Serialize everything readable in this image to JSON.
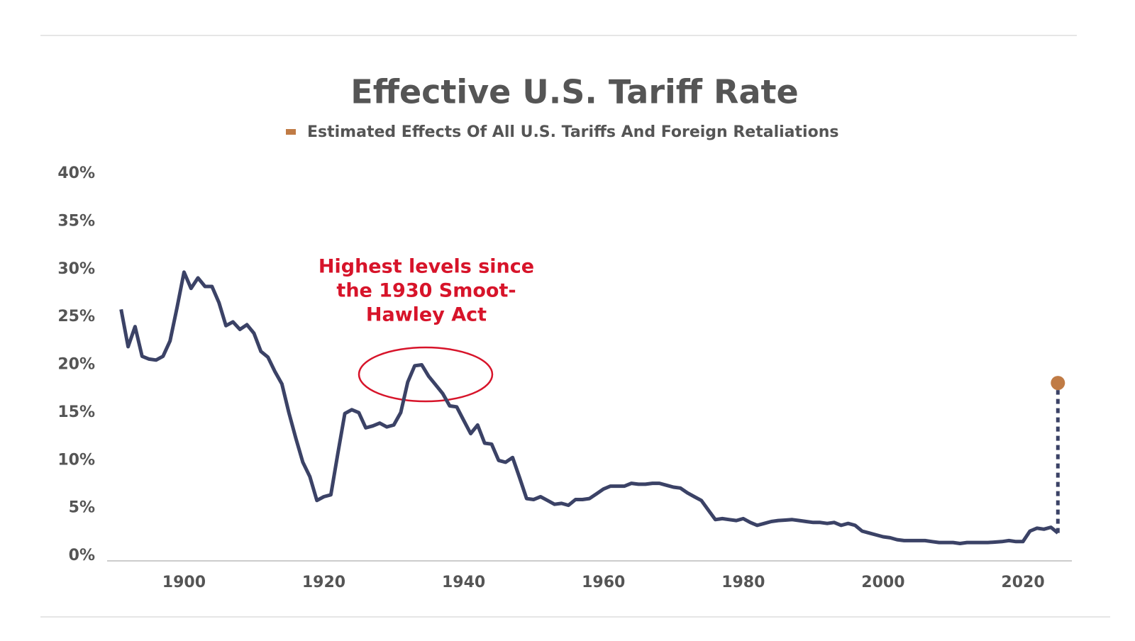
{
  "chart_data": {
    "type": "line",
    "title": "Effective U.S. Tariff Rate",
    "x": [
      1891,
      1892,
      1893,
      1894,
      1895,
      1896,
      1897,
      1898,
      1899,
      1900,
      1901,
      1902,
      1903,
      1904,
      1905,
      1906,
      1907,
      1908,
      1909,
      1910,
      1911,
      1912,
      1913,
      1914,
      1915,
      1916,
      1917,
      1918,
      1919,
      1920,
      1921,
      1922,
      1923,
      1924,
      1925,
      1926,
      1927,
      1928,
      1929,
      1930,
      1931,
      1932,
      1933,
      1934,
      1935,
      1936,
      1937,
      1938,
      1939,
      1940,
      1941,
      1942,
      1943,
      1944,
      1945,
      1946,
      1947,
      1948,
      1949,
      1950,
      1951,
      1952,
      1953,
      1954,
      1955,
      1956,
      1957,
      1958,
      1959,
      1960,
      1961,
      1962,
      1963,
      1964,
      1965,
      1966,
      1967,
      1968,
      1969,
      1970,
      1971,
      1972,
      1973,
      1974,
      1975,
      1976,
      1977,
      1978,
      1979,
      1980,
      1981,
      1982,
      1983,
      1984,
      1985,
      1986,
      1987,
      1988,
      1989,
      1990,
      1991,
      1992,
      1993,
      1994,
      1995,
      1996,
      1997,
      1998,
      1999,
      2000,
      2001,
      2002,
      2003,
      2004,
      2005,
      2006,
      2007,
      2008,
      2009,
      2010,
      2011,
      2012,
      2013,
      2014,
      2015,
      2016,
      2017,
      2018,
      2019,
      2020,
      2021,
      2022,
      2023,
      2024,
      2025
    ],
    "series": [
      {
        "color": "#3b4266",
        "values": [
          25.8,
          21.9,
          24.0,
          20.9,
          20.6,
          20.5,
          20.9,
          22.5,
          26.0,
          29.7,
          28.0,
          29.1,
          28.2,
          28.2,
          26.5,
          24.1,
          24.5,
          23.7,
          24.2,
          23.3,
          21.4,
          20.8,
          19.3,
          18.0,
          15.0,
          12.3,
          9.8,
          8.3,
          5.8,
          6.2,
          6.4,
          10.7,
          14.9,
          15.3,
          15.0,
          13.4,
          13.6,
          13.9,
          13.5,
          13.7,
          15.0,
          18.2,
          19.9,
          20.0,
          18.8,
          17.9,
          17.0,
          15.7,
          15.6,
          14.2,
          12.8,
          13.7,
          11.8,
          11.7,
          10.0,
          9.8,
          10.3,
          8.2,
          6.0,
          5.9,
          6.2,
          5.8,
          5.4,
          5.5,
          5.3,
          5.9,
          5.9,
          6.0,
          6.5,
          7.0,
          7.3,
          7.3,
          7.3,
          7.6,
          7.5,
          7.5,
          7.6,
          7.6,
          7.4,
          7.2,
          7.1,
          6.6,
          6.2,
          5.8,
          4.8,
          3.8,
          3.9,
          3.8,
          3.7,
          3.9,
          3.5,
          3.2,
          3.4,
          3.6,
          3.7,
          3.75,
          3.8,
          3.7,
          3.6,
          3.5,
          3.5,
          3.4,
          3.5,
          3.2,
          3.4,
          3.2,
          2.6,
          2.4,
          2.2,
          2.0,
          1.9,
          1.7,
          1.6,
          1.6,
          1.6,
          1.6,
          1.5,
          1.4,
          1.4,
          1.4,
          1.3,
          1.4,
          1.4,
          1.4,
          1.4,
          1.45,
          1.5,
          1.6,
          1.5,
          1.5,
          2.6,
          2.9,
          2.8,
          3.0,
          2.4
        ]
      },
      {
        "name": "Estimated Effects Of All U.S. Tariffs And Foreign Retaliations",
        "color": "#c07b45",
        "x": [
          2025
        ],
        "values": [
          18.1
        ]
      }
    ],
    "annotation": {
      "lines": [
        "Highest levels since",
        "the 1930 Smoot-",
        "Hawley Act"
      ],
      "color": "#d7142a"
    },
    "xlim": [
      1889,
      2027
    ],
    "xticks": [
      1900,
      1920,
      1940,
      1960,
      1980,
      2000,
      2020
    ],
    "ylim": [
      0,
      40
    ],
    "yticks": [
      {
        "value": 0,
        "label": "0%"
      },
      {
        "value": 5,
        "label": "5%"
      },
      {
        "value": 10,
        "label": "10%"
      },
      {
        "value": 15,
        "label": "15%"
      },
      {
        "value": 20,
        "label": "20%"
      },
      {
        "value": 25,
        "label": "25%"
      },
      {
        "value": 30,
        "label": "30%"
      },
      {
        "value": 35,
        "label": "35%"
      },
      {
        "value": 40,
        "label": "40%"
      }
    ],
    "grid": false
  }
}
